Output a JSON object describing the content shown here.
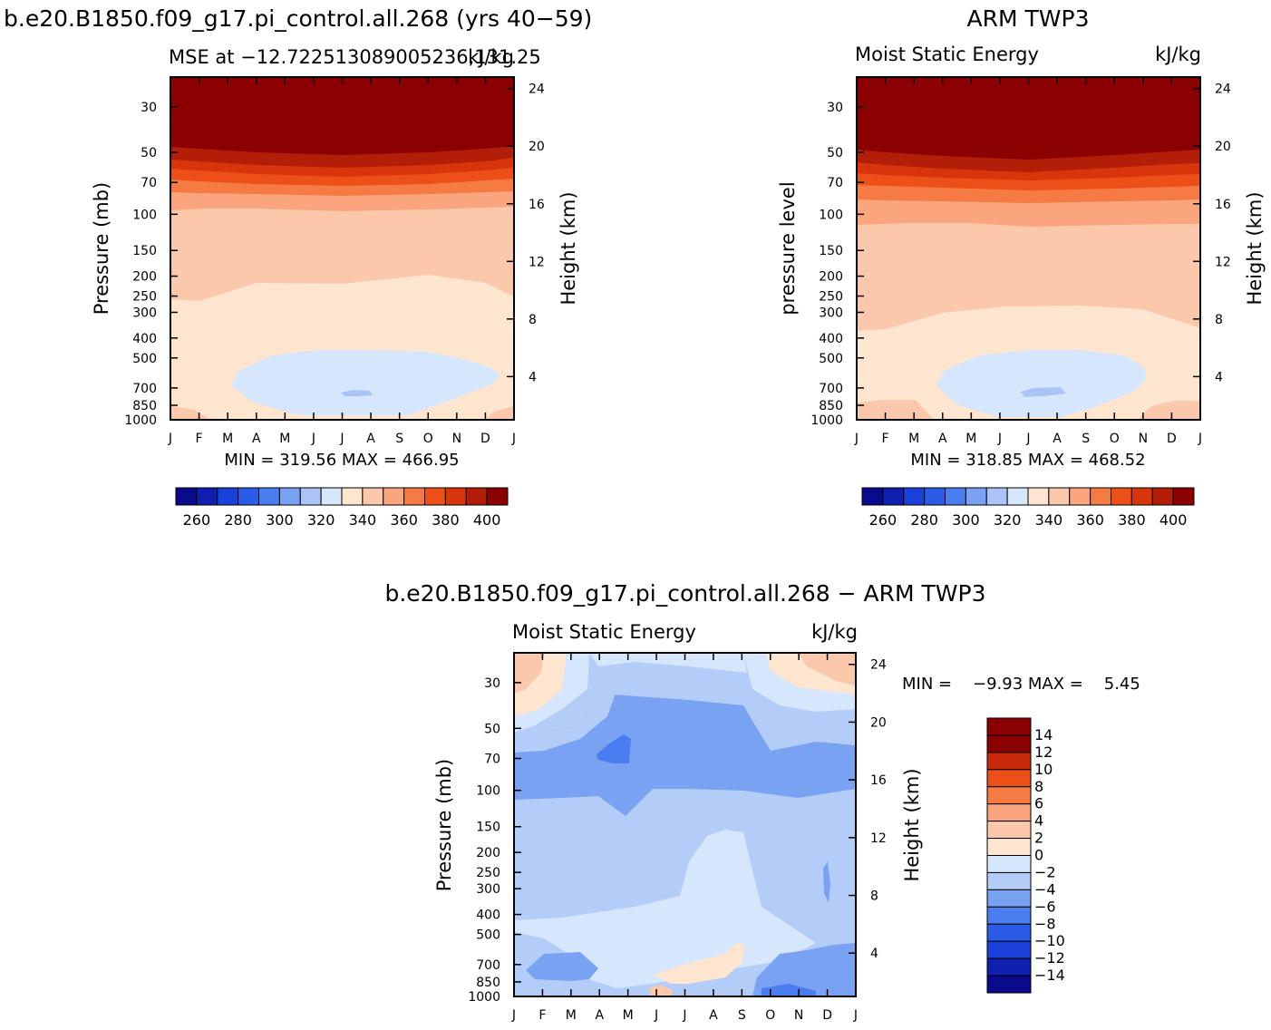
{
  "figure": {
    "title_left": "b.e20.B1850.f09_g17.pi_control.all.268 (yrs 40−59)",
    "title_right": "ARM TWP3",
    "title_bottom": "b.e20.B1850.f09_g17.pi_control.all.268 − ARM TWP3"
  },
  "colors": {
    "mse_levels": [
      "#0a0a8c",
      "#0f1fb0",
      "#1940d8",
      "#2a5ce8",
      "#4a7ef0",
      "#7aa2f2",
      "#aac4f8",
      "#d6e6fc",
      "#fde5d0",
      "#fcc8ac",
      "#fba57e",
      "#f57a44",
      "#ec4f17",
      "#d8350d",
      "#b31e09",
      "#8b0000"
    ],
    "diff_levels": [
      "#0a0a8c",
      "#0f1fb0",
      "#1940d8",
      "#2a5ce8",
      "#4a7ef0",
      "#7aa2f2",
      "#b4ccf8",
      "#d6e6fc",
      "#fde5d0",
      "#fcc8ac",
      "#fba57e",
      "#f57a44",
      "#ec4f17",
      "#c8290b",
      "#8b0000"
    ]
  },
  "chart_data": [
    {
      "type": "heatmap",
      "id": "model",
      "subtitle_left": "MSE at −12.722513089005236,131.25",
      "subtitle_right": "kJ/kg",
      "ylabel": "Pressure (mb)",
      "ylabel_right": "Height (km)",
      "min_max_text": "MIN = 319.56 MAX = 466.95",
      "x": [
        "J",
        "F",
        "M",
        "A",
        "M",
        "J",
        "J",
        "A",
        "S",
        "O",
        "N",
        "D",
        "J"
      ],
      "y_ticks": [
        "30",
        "50",
        "70",
        "100",
        "150",
        "200",
        "250",
        "300",
        "400",
        "500",
        "700",
        "850",
        "1000"
      ],
      "y_right_ticks": [
        "24",
        "20",
        "16",
        "12",
        "8",
        "4"
      ],
      "colorbar_labels": [
        "260",
        "280",
        "300",
        "320",
        "340",
        "360",
        "380",
        "400"
      ]
    },
    {
      "type": "heatmap",
      "id": "obs",
      "subtitle_left": "Moist Static Energy",
      "subtitle_right": "kJ/kg",
      "ylabel": "pressure level",
      "ylabel_right": "Height (km)",
      "min_max_text": "MIN = 318.85 MAX = 468.52",
      "x": [
        "J",
        "F",
        "M",
        "A",
        "M",
        "J",
        "J",
        "A",
        "S",
        "O",
        "N",
        "D",
        "J"
      ],
      "y_ticks": [
        "30",
        "50",
        "70",
        "100",
        "150",
        "200",
        "250",
        "300",
        "400",
        "500",
        "700",
        "850",
        "1000"
      ],
      "y_right_ticks": [
        "24",
        "20",
        "16",
        "12",
        "8",
        "4"
      ],
      "colorbar_labels": [
        "260",
        "280",
        "300",
        "320",
        "340",
        "360",
        "380",
        "400"
      ]
    },
    {
      "type": "heatmap",
      "id": "diff",
      "subtitle_left": "Moist Static Energy",
      "subtitle_right": "kJ/kg",
      "ylabel": "Pressure (mb)",
      "ylabel_right": "Height (km)",
      "min_max_text": "MIN =    −9.93 MAX =    5.45",
      "x": [
        "J",
        "F",
        "M",
        "A",
        "M",
        "J",
        "J",
        "A",
        "S",
        "O",
        "N",
        "D",
        "J"
      ],
      "y_ticks": [
        "30",
        "50",
        "70",
        "100",
        "150",
        "200",
        "250",
        "300",
        "400",
        "500",
        "700",
        "850",
        "1000"
      ],
      "y_right_ticks": [
        "24",
        "20",
        "16",
        "12",
        "8",
        "4"
      ],
      "colorbar_labels": [
        "14",
        "12",
        "10",
        "8",
        "6",
        "4",
        "2",
        "0",
        "−2",
        "−4",
        "−6",
        "−8",
        "−10",
        "−12",
        "−14"
      ]
    }
  ]
}
